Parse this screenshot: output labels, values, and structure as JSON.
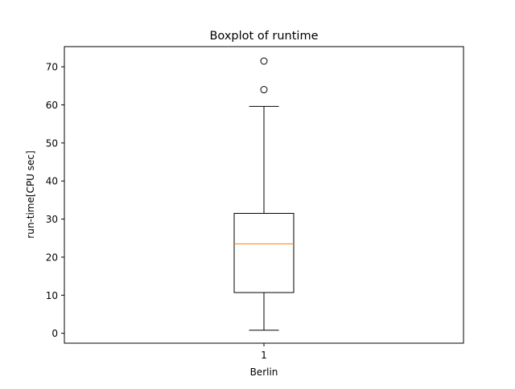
{
  "chart_data": {
    "type": "box",
    "title": "Boxplot of runtime",
    "xlabel": "Berlin",
    "ylabel": "run-time[CPU sec]",
    "categories": [
      "1"
    ],
    "ylim": [
      -2.6,
      75.3
    ],
    "yticks": [
      0,
      10,
      20,
      30,
      40,
      50,
      60,
      70
    ],
    "series": [
      {
        "whisker_low": 0.8,
        "q1": 10.7,
        "median": 23.5,
        "q3": 31.5,
        "whisker_high": 59.6,
        "outliers": [
          64.0,
          71.5
        ]
      }
    ],
    "grid": false,
    "colors": {
      "box": "#000000",
      "median": "#ff7f0e",
      "outlier_edge": "#000000"
    }
  }
}
